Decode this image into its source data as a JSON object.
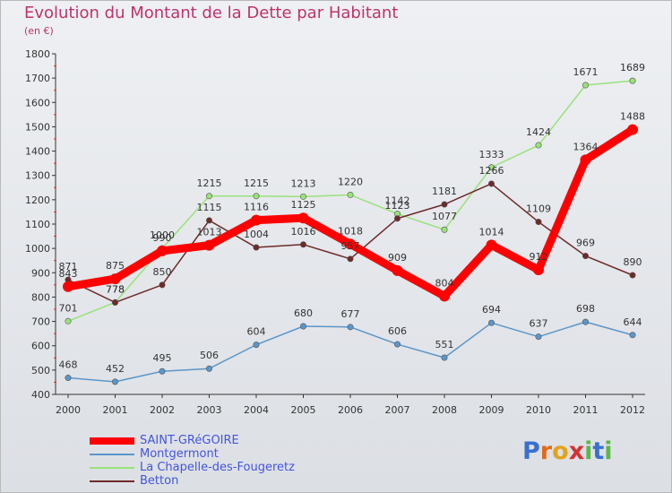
{
  "title": "Evolution du Montant de la Dette par Habitant",
  "unit": "(en €)",
  "brand": {
    "letters": [
      "P",
      "r",
      "o",
      "x",
      "i",
      "t",
      "i"
    ],
    "colors": [
      "#3a6fd0",
      "#e06a1c",
      "#e3a21b",
      "#d43131",
      "#59b84a",
      "#3a6fd0",
      "#59b84a"
    ]
  },
  "chart_data": {
    "type": "line",
    "title": "Evolution du Montant de la Dette par Habitant",
    "ylabel": "(en €)",
    "xlabel": "",
    "x": [
      "2000",
      "2001",
      "2002",
      "2003",
      "2004",
      "2005",
      "2006",
      "2007",
      "2008",
      "2009",
      "2010",
      "2011",
      "2012"
    ],
    "ylim": [
      400,
      1800
    ],
    "yticks": [
      400,
      500,
      600,
      700,
      800,
      900,
      1000,
      1100,
      1200,
      1300,
      1400,
      1500,
      1600,
      1700,
      1800
    ],
    "grid": false,
    "legend_position": "bottom-left",
    "series": [
      {
        "name": "SAINT-GRéGOIRE",
        "color": "#ff0000",
        "values": [
          843,
          875,
          990,
          1013,
          1116,
          1125,
          1018,
          909,
          804,
          1014,
          912,
          1364,
          1488
        ]
      },
      {
        "name": "Montgermont",
        "color": "#5b96c9",
        "values": [
          468,
          452,
          495,
          506,
          604,
          680,
          677,
          606,
          551,
          694,
          637,
          698,
          644
        ]
      },
      {
        "name": "La Chapelle-des-Fougeretz",
        "color": "#99e27a",
        "values": [
          701,
          778,
          1000,
          1215,
          1215,
          1213,
          1220,
          1142,
          1077,
          1333,
          1424,
          1671,
          1689
        ]
      },
      {
        "name": "Betton",
        "color": "#6e2a2a",
        "values": [
          871,
          778,
          850,
          1115,
          1004,
          1016,
          957,
          1123,
          1181,
          1266,
          1109,
          969,
          890
        ]
      }
    ]
  }
}
